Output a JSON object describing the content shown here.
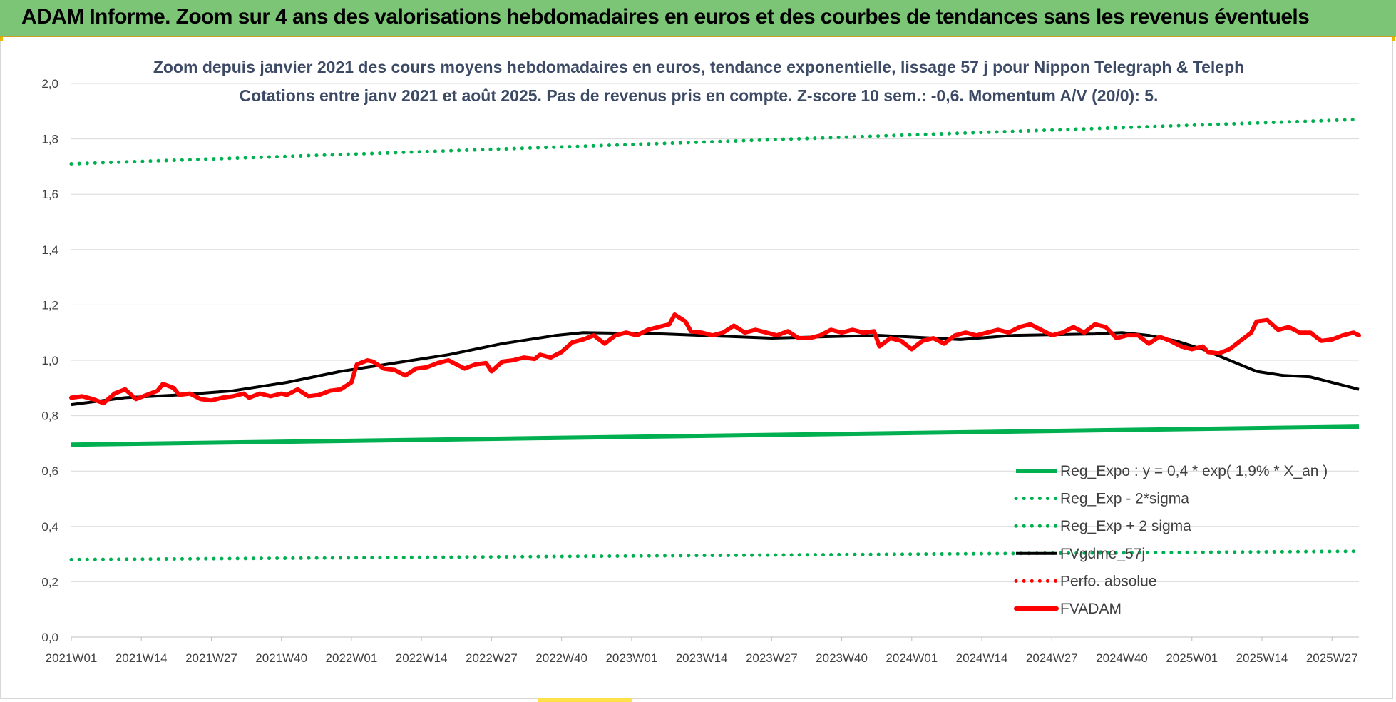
{
  "header": {
    "title": "ADAM Informe. Zoom sur 4 ans des valorisations hebdomadaires en euros et des courbes de tendances sans les revenus éventuels"
  },
  "chart_data": {
    "type": "line",
    "title": "Zoom depuis janvier 2021 des cours moyens hebdomadaires en euros, tendance exponentielle, lissage 57 j pour Nippon Telegraph & Teleph",
    "subtitle": "Cotations entre janv 2021 et août 2025.  Pas de revenus pris en compte. Z-score 10 sem.: -0,6. Momentum A/V (20/0): 5.",
    "xlabel": "",
    "ylabel": "",
    "ylim": [
      0,
      2.0
    ],
    "grid": true,
    "legend_position": "lower-right",
    "y_ticks": [
      "0,0",
      "0,2",
      "0,4",
      "0,6",
      "0,8",
      "1,0",
      "1,2",
      "1,4",
      "1,6",
      "1,8",
      "2,0"
    ],
    "x_ticks": [
      "2021W01",
      "2021W14",
      "2021W27",
      "2021W40",
      "2022W01",
      "2022W14",
      "2022W27",
      "2022W40",
      "2023W01",
      "2023W14",
      "2023W27",
      "2023W40",
      "2024W01",
      "2024W14",
      "2024W27",
      "2024W40",
      "2025W01",
      "2025W14",
      "2025W27"
    ],
    "x_range_weeks": [
      0,
      239
    ],
    "series": [
      {
        "name": "Reg_Expo : y = 0,4 * exp( 1,9% *  X_an )",
        "color": "#00b050",
        "style": "solid",
        "points": [
          [
            0,
            0.695
          ],
          [
            239,
            0.76
          ]
        ]
      },
      {
        "name": "Reg_Exp - 2*sigma",
        "color": "#00b050",
        "style": "dotted",
        "points": [
          [
            0,
            0.28
          ],
          [
            239,
            0.31
          ]
        ]
      },
      {
        "name": "Reg_Exp + 2 sigma",
        "color": "#00b050",
        "style": "dotted",
        "points": [
          [
            0,
            1.71
          ],
          [
            239,
            1.87
          ]
        ]
      },
      {
        "name": "FVgdme_57j",
        "color": "#000000",
        "style": "solid",
        "points": [
          [
            0,
            0.84
          ],
          [
            10,
            0.865
          ],
          [
            20,
            0.875
          ],
          [
            30,
            0.89
          ],
          [
            40,
            0.92
          ],
          [
            50,
            0.96
          ],
          [
            60,
            0.99
          ],
          [
            70,
            1.02
          ],
          [
            80,
            1.06
          ],
          [
            90,
            1.09
          ],
          [
            95,
            1.1
          ],
          [
            110,
            1.095
          ],
          [
            130,
            1.08
          ],
          [
            150,
            1.09
          ],
          [
            160,
            1.08
          ],
          [
            165,
            1.075
          ],
          [
            175,
            1.09
          ],
          [
            190,
            1.095
          ],
          [
            195,
            1.1
          ],
          [
            200,
            1.09
          ],
          [
            205,
            1.07
          ],
          [
            210,
            1.04
          ],
          [
            215,
            1.0
          ],
          [
            220,
            0.96
          ],
          [
            225,
            0.945
          ],
          [
            230,
            0.94
          ],
          [
            239,
            0.895
          ]
        ]
      },
      {
        "name": "Perfo. absolue",
        "color": "#ff0000",
        "style": "dotted",
        "points": []
      },
      {
        "name": "FVADAM",
        "color": "#ff0000",
        "style": "solid",
        "points": [
          [
            0,
            0.865
          ],
          [
            2,
            0.87
          ],
          [
            4,
            0.86
          ],
          [
            6,
            0.845
          ],
          [
            8,
            0.88
          ],
          [
            10,
            0.895
          ],
          [
            12,
            0.86
          ],
          [
            14,
            0.875
          ],
          [
            16,
            0.89
          ],
          [
            17,
            0.915
          ],
          [
            19,
            0.9
          ],
          [
            20,
            0.875
          ],
          [
            22,
            0.88
          ],
          [
            24,
            0.86
          ],
          [
            26,
            0.855
          ],
          [
            28,
            0.865
          ],
          [
            30,
            0.87
          ],
          [
            32,
            0.88
          ],
          [
            33,
            0.865
          ],
          [
            35,
            0.88
          ],
          [
            37,
            0.87
          ],
          [
            39,
            0.88
          ],
          [
            40,
            0.875
          ],
          [
            42,
            0.895
          ],
          [
            44,
            0.87
          ],
          [
            46,
            0.875
          ],
          [
            48,
            0.89
          ],
          [
            50,
            0.895
          ],
          [
            52,
            0.92
          ],
          [
            53,
            0.985
          ],
          [
            55,
            1.0
          ],
          [
            56,
            0.995
          ],
          [
            58,
            0.97
          ],
          [
            60,
            0.965
          ],
          [
            62,
            0.945
          ],
          [
            64,
            0.97
          ],
          [
            66,
            0.975
          ],
          [
            68,
            0.99
          ],
          [
            70,
            1.0
          ],
          [
            71,
            0.99
          ],
          [
            73,
            0.97
          ],
          [
            75,
            0.985
          ],
          [
            77,
            0.99
          ],
          [
            78,
            0.96
          ],
          [
            80,
            0.995
          ],
          [
            82,
            1.0
          ],
          [
            84,
            1.01
          ],
          [
            86,
            1.005
          ],
          [
            87,
            1.02
          ],
          [
            89,
            1.01
          ],
          [
            91,
            1.03
          ],
          [
            93,
            1.065
          ],
          [
            95,
            1.075
          ],
          [
            97,
            1.09
          ],
          [
            99,
            1.06
          ],
          [
            101,
            1.09
          ],
          [
            103,
            1.1
          ],
          [
            105,
            1.09
          ],
          [
            107,
            1.11
          ],
          [
            109,
            1.12
          ],
          [
            111,
            1.13
          ],
          [
            112,
            1.165
          ],
          [
            114,
            1.14
          ],
          [
            115,
            1.105
          ],
          [
            117,
            1.1
          ],
          [
            119,
            1.09
          ],
          [
            121,
            1.1
          ],
          [
            123,
            1.125
          ],
          [
            125,
            1.1
          ],
          [
            127,
            1.11
          ],
          [
            129,
            1.1
          ],
          [
            131,
            1.09
          ],
          [
            133,
            1.105
          ],
          [
            135,
            1.08
          ],
          [
            137,
            1.08
          ],
          [
            139,
            1.09
          ],
          [
            141,
            1.11
          ],
          [
            143,
            1.1
          ],
          [
            145,
            1.11
          ],
          [
            147,
            1.1
          ],
          [
            149,
            1.105
          ],
          [
            150,
            1.05
          ],
          [
            152,
            1.08
          ],
          [
            154,
            1.07
          ],
          [
            156,
            1.04
          ],
          [
            158,
            1.07
          ],
          [
            160,
            1.08
          ],
          [
            162,
            1.06
          ],
          [
            164,
            1.09
          ],
          [
            166,
            1.1
          ],
          [
            168,
            1.09
          ],
          [
            170,
            1.1
          ],
          [
            172,
            1.11
          ],
          [
            174,
            1.1
          ],
          [
            176,
            1.12
          ],
          [
            178,
            1.13
          ],
          [
            180,
            1.11
          ],
          [
            182,
            1.09
          ],
          [
            184,
            1.1
          ],
          [
            186,
            1.12
          ],
          [
            188,
            1.1
          ],
          [
            190,
            1.13
          ],
          [
            192,
            1.12
          ],
          [
            194,
            1.08
          ],
          [
            196,
            1.09
          ],
          [
            198,
            1.09
          ],
          [
            200,
            1.06
          ],
          [
            202,
            1.085
          ],
          [
            204,
            1.07
          ],
          [
            206,
            1.05
          ],
          [
            208,
            1.04
          ],
          [
            210,
            1.05
          ],
          [
            211,
            1.03
          ],
          [
            213,
            1.025
          ],
          [
            215,
            1.04
          ],
          [
            217,
            1.07
          ],
          [
            219,
            1.1
          ],
          [
            220,
            1.14
          ],
          [
            222,
            1.145
          ],
          [
            224,
            1.11
          ],
          [
            226,
            1.12
          ],
          [
            228,
            1.1
          ],
          [
            230,
            1.1
          ],
          [
            232,
            1.07
          ],
          [
            234,
            1.075
          ],
          [
            236,
            1.09
          ],
          [
            238,
            1.1
          ],
          [
            239,
            1.09
          ]
        ]
      }
    ]
  }
}
